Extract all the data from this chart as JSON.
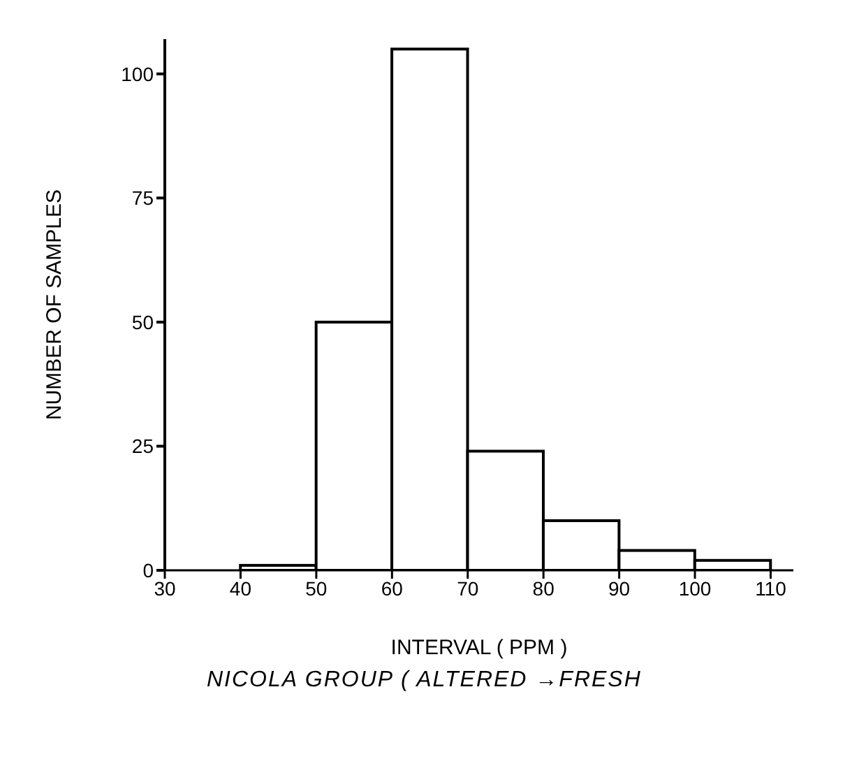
{
  "chart_data": {
    "type": "histogram",
    "title": "NICOLA GROUP ( ALTERED →FRESH",
    "xlabel": "INTERVAL ( PPM )",
    "ylabel": "NUMBER  OF  SAMPLES",
    "bins": [
      30,
      40,
      50,
      60,
      70,
      80,
      90,
      100,
      110
    ],
    "values": [
      0,
      1,
      50,
      105,
      24,
      10,
      4,
      2
    ],
    "color": "#000000",
    "xlim": [
      30,
      113
    ],
    "xticks": [
      30,
      40,
      50,
      60,
      70,
      80,
      90,
      100,
      110
    ],
    "ylim": [
      0,
      107
    ],
    "yticks": [
      0,
      25,
      50,
      75,
      100
    ],
    "grid": false,
    "legend": false
  }
}
